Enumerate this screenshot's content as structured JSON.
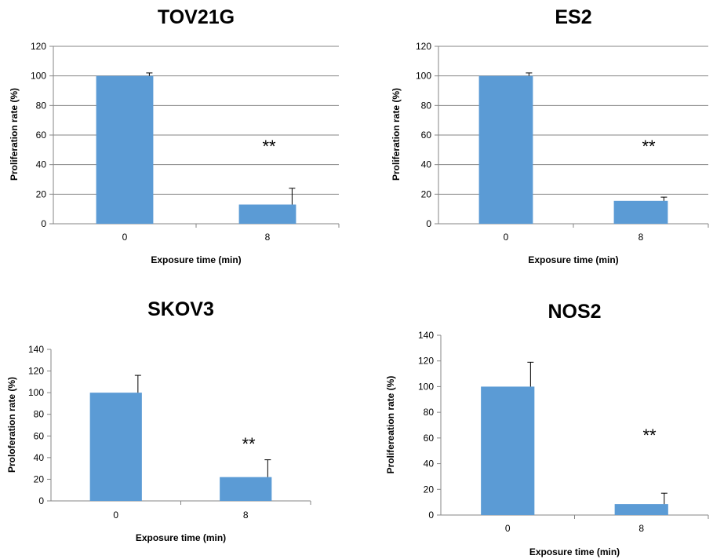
{
  "colors": {
    "bar": "#5B9BD5",
    "grid": "#868686",
    "axis": "#868686"
  },
  "chart_data": [
    {
      "type": "bar",
      "title": "TOV21G",
      "xlabel": "Exposure time (min)",
      "ylabel": "Proliferation rate (%)",
      "categories": [
        "0",
        "8"
      ],
      "values": [
        100,
        13
      ],
      "errors": [
        2,
        11
      ],
      "ylim": [
        0,
        120
      ],
      "yticks": [
        0,
        20,
        40,
        60,
        80,
        100,
        120
      ],
      "grid": true,
      "annotation": "**"
    },
    {
      "type": "bar",
      "title": "ES2",
      "xlabel": "Exposure time (min)",
      "ylabel": "Proliferation rate (%)",
      "categories": [
        "0",
        "8"
      ],
      "values": [
        100,
        15.5
      ],
      "errors": [
        2,
        2.5
      ],
      "ylim": [
        0,
        120
      ],
      "yticks": [
        0,
        20,
        40,
        60,
        80,
        100,
        120
      ],
      "grid": true,
      "annotation": "**"
    },
    {
      "type": "bar",
      "title": "SKOV3",
      "xlabel": "Exposure time (min)",
      "ylabel": "Proloferation rate (%)",
      "categories": [
        "0",
        "8"
      ],
      "values": [
        100,
        22
      ],
      "errors": [
        16,
        16
      ],
      "ylim": [
        0,
        140
      ],
      "yticks": [
        0,
        20,
        40,
        60,
        80,
        100,
        120,
        140
      ],
      "grid": false,
      "annotation": "**"
    },
    {
      "type": "bar",
      "title": "NOS2",
      "xlabel": "Exposure time (min)",
      "ylabel": "Prolifereation rate (%)",
      "categories": [
        "0",
        "8"
      ],
      "values": [
        100,
        8.5
      ],
      "errors": [
        19,
        8.5
      ],
      "ylim": [
        0,
        140
      ],
      "yticks": [
        0,
        20,
        40,
        60,
        80,
        100,
        120,
        140
      ],
      "grid": false,
      "annotation": "**"
    }
  ]
}
